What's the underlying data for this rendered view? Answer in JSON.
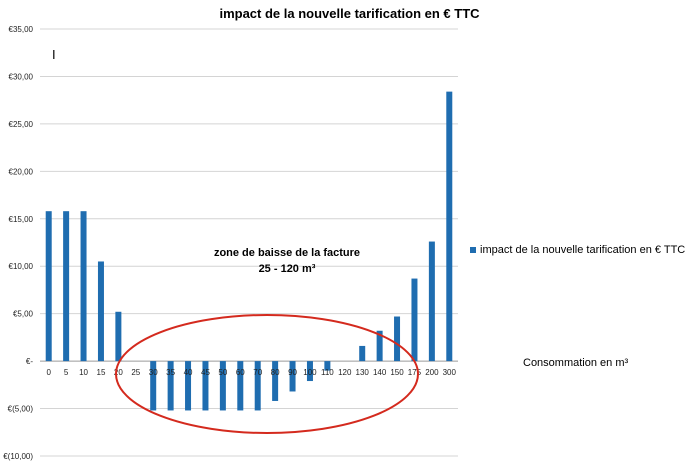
{
  "chart_data": {
    "type": "bar",
    "title": "impact de la nouvelle tarification en € TTC",
    "xlabel": "Consommation en m³",
    "ylabel": "",
    "ylim": [
      -10,
      35
    ],
    "y_tick_labels": [
      "€(10,00)",
      "€(5,00)",
      "€-",
      "€5,00",
      "€10,00",
      "€15,00",
      "€20,00",
      "€25,00",
      "€30,00",
      "€35,00"
    ],
    "y_tick_values": [
      -10,
      -5,
      0,
      5,
      10,
      15,
      20,
      25,
      30,
      35
    ],
    "grid": true,
    "legend_position": "right",
    "categories": [
      "0",
      "5",
      "10",
      "15",
      "20",
      "25",
      "30",
      "35",
      "40",
      "45",
      "50",
      "60",
      "70",
      "80",
      "90",
      "100",
      "110",
      "120",
      "130",
      "140",
      "150",
      "175",
      "200",
      "300"
    ],
    "series": [
      {
        "name": "impact de la nouvelle tarification en € TTC",
        "color": "#1f6db0",
        "values": [
          15.8,
          15.8,
          15.8,
          10.5,
          5.2,
          0,
          -5.2,
          -5.2,
          -5.2,
          -5.2,
          -5.2,
          -5.2,
          -5.2,
          -4.2,
          -3.2,
          -2.1,
          -1.0,
          0,
          1.6,
          3.2,
          4.7,
          8.7,
          12.6,
          28.4
        ]
      }
    ],
    "annotation": {
      "line1": "zone de baisse de la facture",
      "line2": "25 - 120 m³",
      "ellipse_color": "#d42a1e"
    },
    "cursor_glyph": "I"
  }
}
